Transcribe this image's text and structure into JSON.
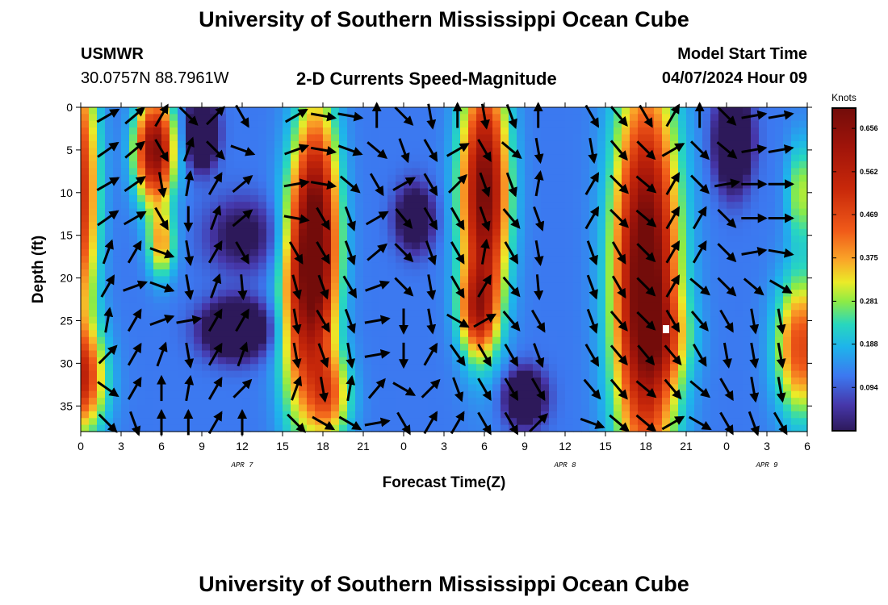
{
  "page": {
    "title_top": "University of Southern Mississippi Ocean Cube",
    "title_bottom": "University of Southern Mississippi Ocean Cube",
    "station": "USMWR",
    "coords": "30.0757N  88.7961W",
    "subtitle": "2-D Currents Speed-Magnitude",
    "model_start_label": "Model Start Time",
    "model_start_value": "04/07/2024 Hour 09"
  },
  "chart_data": {
    "type": "heatmap",
    "title": "2-D Currents Speed-Magnitude",
    "xlabel": "Forecast Time(Z)",
    "ylabel": "Depth (ft)",
    "x_range_hours": [
      0,
      54
    ],
    "y_range_ft": [
      0,
      38
    ],
    "x_tick_labels": [
      "0",
      "3",
      "6",
      "9",
      "12",
      "15",
      "18",
      "21",
      "0",
      "3",
      "6",
      "9",
      "12",
      "15",
      "18",
      "21",
      "0",
      "3",
      "6"
    ],
    "y_tick_labels": [
      "0",
      "5",
      "10",
      "15",
      "20",
      "25",
      "30",
      "35"
    ],
    "y_ticks": [
      0,
      5,
      10,
      15,
      20,
      25,
      30,
      35
    ],
    "date_labels": [
      {
        "text": "APR 7",
        "hour": 12
      },
      {
        "text": "APR 8",
        "hour": 36
      },
      {
        "text": "APR 9",
        "hour": 51
      }
    ],
    "colorbar": {
      "unit": "Knots",
      "range": [
        0.0,
        0.7
      ],
      "tick_values": [
        0.656,
        0.562,
        0.469,
        0.375,
        0.281,
        0.188,
        0.094
      ],
      "tick_labels": [
        "0.656",
        "0.562",
        "0.469",
        "0.375",
        "0.281",
        "0.188",
        "0.094"
      ]
    },
    "speed_field": {
      "description": "Current speed (knots) by forecast hour and depth",
      "blobs": [
        {
          "h": 0.0,
          "d": 10,
          "hw": 1.3,
          "dw": 16,
          "v": 0.4
        },
        {
          "h": 0.0,
          "d": 32,
          "hw": 1.8,
          "dw": 6,
          "v": 0.38
        },
        {
          "h": 5.5,
          "d": 5,
          "hw": 1.4,
          "dw": 6,
          "v": 0.56
        },
        {
          "h": 6.0,
          "d": 16,
          "hw": 1.0,
          "dw": 4,
          "v": 0.25
        },
        {
          "h": 9.0,
          "d": 3,
          "hw": 1.0,
          "dw": 3.5,
          "v": -0.42
        },
        {
          "h": 11.5,
          "d": 26,
          "hw": 2.2,
          "dw": 3,
          "v": -0.38
        },
        {
          "h": 12.0,
          "d": 15,
          "hw": 2.5,
          "dw": 4,
          "v": -0.15
        },
        {
          "h": 16.0,
          "d": 24,
          "hw": 1.5,
          "dw": 15,
          "v": 0.22
        },
        {
          "h": 17.5,
          "d": 16,
          "hw": 1.6,
          "dw": 15,
          "v": 0.62
        },
        {
          "h": 18.5,
          "d": 34,
          "hw": 1.6,
          "dw": 5,
          "v": 0.25
        },
        {
          "h": 24.8,
          "d": 13,
          "hw": 1.3,
          "dw": 3.5,
          "v": -0.25
        },
        {
          "h": 30.0,
          "d": 10,
          "hw": 1.7,
          "dw": 14,
          "v": 0.58
        },
        {
          "h": 29.5,
          "d": 24,
          "hw": 1.3,
          "dw": 5,
          "v": 0.32
        },
        {
          "h": 33.0,
          "d": 34,
          "hw": 1.4,
          "dw": 3,
          "v": -0.3
        },
        {
          "h": 42.0,
          "d": 20,
          "hw": 2.3,
          "dw": 22,
          "v": 0.65
        },
        {
          "h": 43.5,
          "d": 27,
          "hw": 2.0,
          "dw": 5,
          "v": 0.12
        },
        {
          "h": 48.5,
          "d": 4,
          "hw": 1.2,
          "dw": 5,
          "v": -0.38
        },
        {
          "h": 53.5,
          "d": 28,
          "hw": 1.8,
          "dw": 8,
          "v": 0.35
        },
        {
          "h": 53.5,
          "d": 10,
          "hw": 1.0,
          "dw": 6,
          "v": 0.18
        }
      ],
      "base": 0.12
    },
    "vectors": {
      "description": "Current direction arrows (angle in degrees, 0 = east, positive = clockwise/downward) on a grid of forecast hours x depths",
      "hours": [
        2,
        4,
        6,
        8,
        10,
        12,
        16,
        18,
        20,
        22,
        24,
        26,
        28,
        30,
        32,
        34,
        38,
        40,
        42,
        44,
        46,
        48,
        50,
        52
      ],
      "depths": [
        1,
        5,
        9,
        13,
        17,
        21,
        25,
        29,
        33,
        37
      ],
      "angles": [
        [
          -30,
          -40,
          -60,
          45,
          -45,
          60,
          -30,
          10,
          10,
          -90,
          45,
          80,
          -90,
          80,
          70,
          -90,
          60,
          50,
          60,
          -60,
          -90,
          45,
          -10,
          -10
        ],
        [
          -35,
          -40,
          60,
          -70,
          45,
          20,
          -20,
          10,
          20,
          40,
          70,
          60,
          -30,
          60,
          40,
          80,
          80,
          50,
          45,
          -30,
          45,
          40,
          -10,
          -10
        ],
        [
          -30,
          -35,
          80,
          -80,
          -60,
          -40,
          -10,
          10,
          40,
          60,
          -30,
          60,
          -45,
          70,
          70,
          -80,
          -60,
          45,
          40,
          -60,
          45,
          -10,
          0,
          0
        ],
        [
          -35,
          -30,
          60,
          90,
          -70,
          -40,
          10,
          60,
          70,
          -30,
          50,
          60,
          60,
          70,
          50,
          70,
          -60,
          45,
          40,
          -60,
          -60,
          45,
          0,
          0
        ],
        [
          -70,
          -60,
          20,
          80,
          -60,
          60,
          60,
          60,
          70,
          -40,
          45,
          70,
          60,
          -80,
          60,
          80,
          70,
          60,
          45,
          -60,
          -60,
          45,
          -10,
          10
        ],
        [
          -60,
          -20,
          20,
          80,
          -70,
          85,
          75,
          70,
          60,
          -20,
          45,
          80,
          60,
          -60,
          50,
          85,
          70,
          60,
          45,
          -60,
          40,
          45,
          40,
          30
        ],
        [
          -80,
          -60,
          -20,
          -10,
          -60,
          -60,
          80,
          60,
          70,
          -10,
          90,
          80,
          30,
          -30,
          50,
          60,
          70,
          50,
          45,
          60,
          50,
          60,
          80,
          80
        ],
        [
          -45,
          -60,
          -70,
          80,
          -60,
          -70,
          80,
          70,
          80,
          -10,
          90,
          -60,
          55,
          60,
          60,
          70,
          60,
          50,
          50,
          50,
          60,
          80,
          80,
          80
        ],
        [
          35,
          -60,
          -90,
          -80,
          -60,
          -45,
          -70,
          80,
          -80,
          -50,
          30,
          -45,
          70,
          60,
          60,
          60,
          50,
          50,
          40,
          50,
          40,
          60,
          80,
          80
        ],
        [
          45,
          70,
          -90,
          -90,
          -60,
          -90,
          45,
          30,
          30,
          -10,
          60,
          -60,
          -60,
          60,
          60,
          -45,
          20,
          40,
          40,
          -30,
          30,
          60,
          70,
          60
        ]
      ]
    },
    "marker": {
      "hour": 43.5,
      "depth": 26
    }
  }
}
